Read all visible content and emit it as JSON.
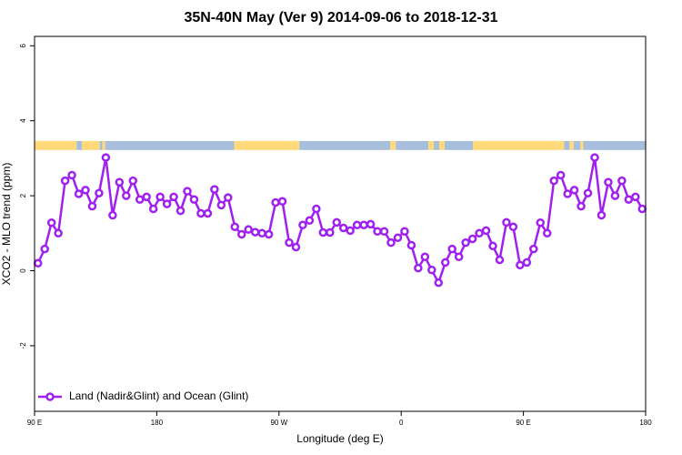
{
  "chart_data": {
    "type": "line",
    "title": "35N-40N May (Ver 9)   2014-09-06 to 2018-12-31",
    "x_label": "Longitude (deg E)",
    "y_label": "XCO2 - MLO trend (ppm)",
    "xlim": [
      90,
      540
    ],
    "xticks": [
      {
        "value": 90,
        "label": "90 E"
      },
      180,
      {
        "value": 270,
        "label": "90 W"
      },
      {
        "value": 360,
        "label": "0"
      },
      {
        "value": 450,
        "label": "90 E"
      },
      {
        "value": 540,
        "label": "180"
      }
    ],
    "ylim": [
      -3.75,
      6.25
    ],
    "yticks": [
      -2,
      0,
      2,
      4,
      6
    ],
    "legend": "bottom-left",
    "mask_yrange": [
      3.22,
      3.46
    ],
    "mask": [
      {
        "from": 90,
        "to": 121,
        "color": "#ffd97a"
      },
      {
        "from": 121,
        "to": 125,
        "color": "#a7bfdd"
      },
      {
        "from": 125,
        "to": 138,
        "color": "#ffd97a"
      },
      {
        "from": 138,
        "to": 140,
        "color": "#a7bfdd"
      },
      {
        "from": 140,
        "to": 142,
        "color": "#ffd97a"
      },
      {
        "from": 142,
        "to": 237,
        "color": "#a7bfdd"
      },
      {
        "from": 237,
        "to": 285,
        "color": "#ffd97a"
      },
      {
        "from": 285,
        "to": 352,
        "color": "#a7bfdd"
      },
      {
        "from": 352,
        "to": 356,
        "color": "#ffd97a"
      },
      {
        "from": 356,
        "to": 380,
        "color": "#a7bfdd"
      },
      {
        "from": 380,
        "to": 384,
        "color": "#ffd97a"
      },
      {
        "from": 384,
        "to": 388,
        "color": "#a7bfdd"
      },
      {
        "from": 388,
        "to": 392,
        "color": "#ffd97a"
      },
      {
        "from": 392,
        "to": 413,
        "color": "#a7bfdd"
      },
      {
        "from": 413,
        "to": 480,
        "color": "#ffd97a"
      },
      {
        "from": 480,
        "to": 484,
        "color": "#a7bfdd"
      },
      {
        "from": 484,
        "to": 487,
        "color": "#ffd97a"
      },
      {
        "from": 487,
        "to": 492,
        "color": "#a7bfdd"
      },
      {
        "from": 492,
        "to": 494,
        "color": "#ffd97a"
      },
      {
        "from": 494,
        "to": 540,
        "color": "#a7bfdd"
      }
    ],
    "x": [
      92.5,
      97.5,
      102.5,
      107.5,
      112.5,
      117.5,
      122.5,
      127.5,
      132.5,
      137.5,
      142.5,
      147.5,
      152.5,
      157.5,
      162.5,
      167.5,
      172.5,
      177.5,
      182.5,
      187.5,
      192.5,
      197.5,
      202.5,
      207.5,
      212.5,
      217.5,
      222.5,
      227.5,
      232.5,
      237.5,
      242.5,
      247.5,
      252.5,
      257.5,
      262.5,
      267.5,
      272.5,
      277.5,
      282.5,
      287.5,
      292.5,
      297.5,
      302.5,
      307.5,
      312.5,
      317.5,
      322.5,
      327.5,
      332.5,
      337.5,
      342.5,
      347.5,
      352.5,
      357.5,
      362.5,
      367.5,
      372.5,
      377.5,
      382.5,
      387.5,
      392.5,
      397.5,
      402.5,
      407.5,
      412.5,
      417.5,
      422.5,
      427.5,
      432.5,
      437.5,
      442.5,
      447.5,
      452.5,
      457.5,
      462.5,
      467.5,
      472.5,
      477.5,
      482.5,
      487.5,
      492.5,
      497.5,
      502.5,
      507.5,
      512.5,
      517.5,
      522.5,
      527.5,
      532.5,
      537.5
    ],
    "series": [
      {
        "name": "Land (Nadir&Glint) and Ocean (Glint)",
        "color": "#a020f0",
        "values": [
          0.2,
          0.58,
          1.28,
          1.0,
          2.4,
          2.55,
          2.05,
          2.15,
          1.72,
          2.07,
          3.02,
          1.48,
          2.36,
          2.0,
          2.4,
          1.9,
          1.97,
          1.65,
          1.97,
          1.78,
          1.97,
          1.6,
          2.12,
          1.9,
          1.53,
          1.53,
          2.17,
          1.75,
          1.95,
          1.17,
          0.97,
          1.1,
          1.03,
          1.0,
          0.97,
          1.82,
          1.85,
          0.75,
          0.63,
          1.22,
          1.34,
          1.65,
          1.02,
          1.02,
          1.29,
          1.14,
          1.07,
          1.22,
          1.22,
          1.24,
          1.05,
          1.05,
          0.75,
          0.88,
          1.05,
          0.68,
          0.07,
          0.37,
          0.02,
          -0.32,
          0.22,
          0.58,
          0.37,
          0.75,
          0.85,
          1.0,
          1.07,
          0.66,
          0.29,
          1.29,
          1.17,
          0.15,
          0.22,
          0.58,
          1.28,
          1.0,
          2.4,
          2.55,
          2.05,
          2.15,
          1.72,
          2.07,
          3.02,
          1.48,
          2.36,
          2.0,
          2.4,
          1.9,
          1.97,
          1.65
        ]
      }
    ]
  }
}
